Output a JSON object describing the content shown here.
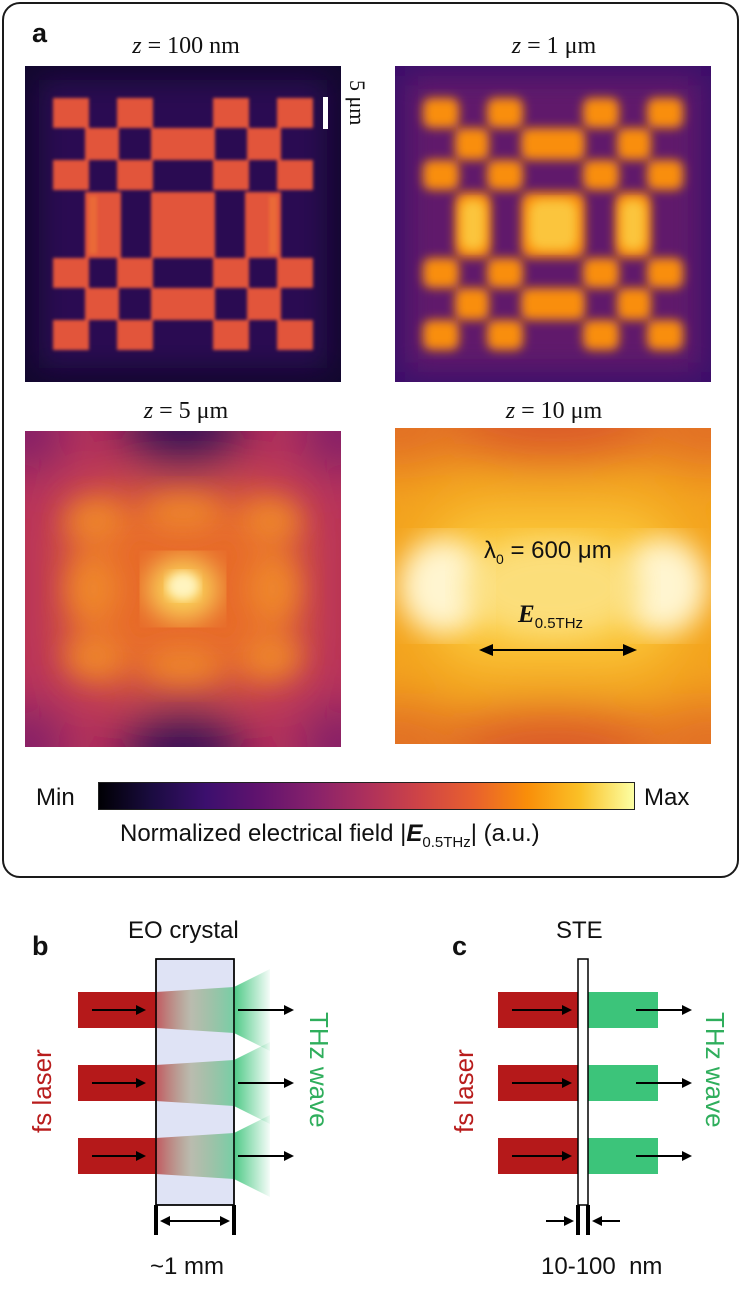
{
  "panel_a": {
    "label": "a",
    "maps": [
      {
        "z_prefix": "z",
        "z_value": "= 100 nm"
      },
      {
        "z_prefix": "z",
        "z_value": "= 1 μm"
      },
      {
        "z_prefix": "z",
        "z_value": "= 5 μm"
      },
      {
        "z_prefix": "z",
        "z_value": "= 10 μm"
      }
    ],
    "scalebar_label": "5 μm",
    "wavelength_label": "λ",
    "wavelength_sub": "0",
    "wavelength_value": " = 600 μm",
    "field_symbol": "E",
    "field_sub": "0.5THz",
    "colorbar": {
      "min_label": "Min",
      "max_label": "Max",
      "title_prefix": "Normalized electrical field |",
      "title_symbol": "E",
      "title_sub": "0.5THz",
      "title_suffix": "| (a.u.)",
      "colormap": "inferno"
    }
  },
  "panel_b": {
    "label": "b",
    "element_label": "EO crystal",
    "input_label": "fs laser",
    "output_label": "THz wave",
    "thickness_label": "~1 mm"
  },
  "panel_c": {
    "label": "c",
    "element_label": "STE",
    "input_label": "fs laser",
    "output_label": "THz wave",
    "thickness_label": "10-100  nm"
  },
  "colors": {
    "laser": "#b5191a",
    "thz": "#3cc47a",
    "thz_label": "#2fae5c",
    "laser_label": "#b81c1c",
    "crystal": "#dfe3f5"
  }
}
